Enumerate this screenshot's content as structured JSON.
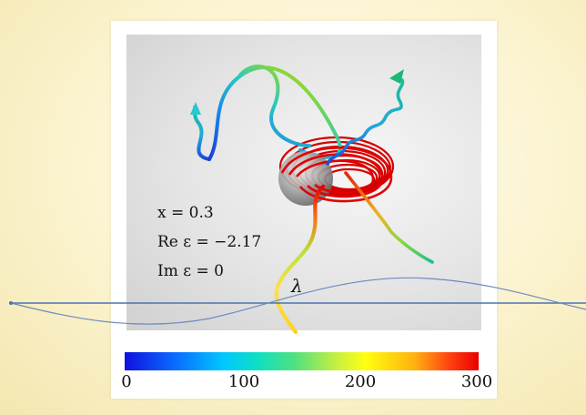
{
  "parameters": {
    "x": "x = 0.3",
    "re_eps": "Re ε = −2.17",
    "im_eps": "Im ε = 0"
  },
  "wave_label": "λ",
  "colorbar": {
    "ticks": [
      "0",
      "100",
      "200",
      "300"
    ],
    "min": 0,
    "max": 300,
    "colormap": "jet"
  },
  "colors": {
    "background": "#fbf3cf",
    "wave_line": "#5b7fb8",
    "sphere": "#9a9a9a"
  }
}
